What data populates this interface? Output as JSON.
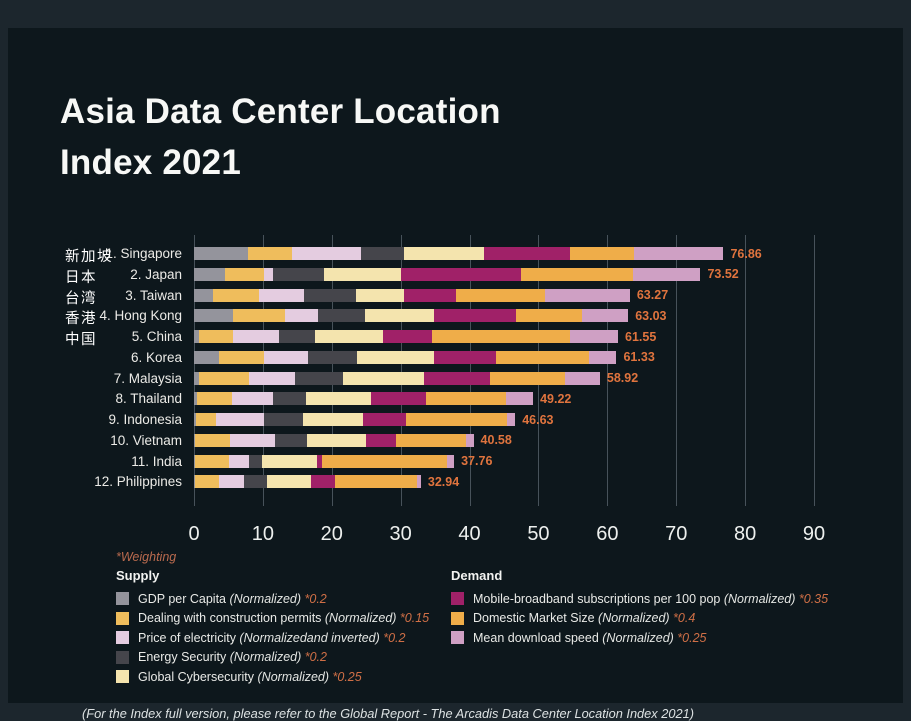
{
  "title": {
    "line1": "Asia Data Center Location",
    "line2": "Index 2021"
  },
  "chart_data": {
    "type": "bar",
    "orientation": "horizontal",
    "title": "Asia Data Center Location Index 2021",
    "xlim": [
      0,
      90
    ],
    "x_ticks": [
      0,
      10,
      20,
      30,
      40,
      50,
      60,
      70,
      80,
      90
    ],
    "grid": true,
    "categories": [
      "1. Singapore",
      "2. Japan",
      "3. Taiwan",
      "4. Hong Kong",
      "5. China",
      "6. Korea",
      "7. Malaysia",
      "8. Thailand",
      "9. Indonesia",
      "10. Vietnam",
      "11. India",
      "12. Philippines"
    ],
    "cjk_labels": [
      "新加坡",
      "日本",
      "台湾",
      "香港",
      "中国"
    ],
    "totals": [
      76.86,
      73.52,
      63.27,
      63.03,
      61.55,
      61.33,
      58.92,
      49.22,
      46.63,
      40.58,
      37.76,
      32.94
    ],
    "series": [
      {
        "name": "GDP per Capita",
        "color": "#94949c",
        "values": [
          7.8,
          4.5,
          2.8,
          5.7,
          0.7,
          3.6,
          0.7,
          0.4,
          0.3,
          0.2,
          0.1,
          0.1
        ]
      },
      {
        "name": "Dealing with construction permits",
        "color": "#efbd5c",
        "values": [
          6.4,
          5.6,
          6.7,
          7.5,
          4.9,
          6.6,
          7.3,
          5.1,
          2.9,
          5.0,
          5.0,
          3.6
        ]
      },
      {
        "name": "Price of electricity",
        "color": "#e4cce0",
        "values": [
          10.0,
          1.3,
          6.5,
          4.8,
          6.7,
          6.3,
          6.6,
          5.9,
          7.0,
          6.6,
          2.9,
          3.5
        ]
      },
      {
        "name": "Energy Security",
        "color": "#45454b",
        "values": [
          6.3,
          7.4,
          7.5,
          6.8,
          5.2,
          7.1,
          7.0,
          4.8,
          5.6,
          4.6,
          1.9,
          3.4
        ]
      },
      {
        "name": "Global Cybersecurity",
        "color": "#f4e4ae",
        "values": [
          11.6,
          11.3,
          7.0,
          10.1,
          9.9,
          11.2,
          11.8,
          9.5,
          8.7,
          8.6,
          8.0,
          6.4
        ]
      },
      {
        "name": "Mobile-broadband subscriptions per 100 pop",
        "color": "#a02168",
        "values": [
          12.5,
          17.4,
          7.6,
          11.8,
          7.2,
          9.1,
          9.5,
          8.0,
          6.3,
          4.3,
          0.7,
          3.5
        ]
      },
      {
        "name": "Domestic Market Size",
        "color": "#efad49",
        "values": [
          9.26,
          16.2,
          12.8,
          9.6,
          20.0,
          13.4,
          10.9,
          11.6,
          14.7,
          10.2,
          18.1,
          11.8
        ]
      },
      {
        "name": "Mean download speed",
        "color": "#cfa0c4",
        "values": [
          13.0,
          9.82,
          12.37,
          6.73,
          6.95,
          4.03,
          5.12,
          3.92,
          1.13,
          1.08,
          1.06,
          0.64
        ]
      }
    ]
  },
  "legend": {
    "weighting_note": "*Weighting",
    "supply": {
      "heading": "Supply",
      "items": [
        {
          "label": "GDP per Capita",
          "qualifier": "(Normalized)",
          "weight": "*0.2",
          "color": "#94949c"
        },
        {
          "label": "Dealing with construction permits",
          "qualifier": "(Normalized)",
          "weight": "*0.15",
          "color": "#efbd5c"
        },
        {
          "label": "Price of electricity",
          "qualifier": "(Normalizedand inverted)",
          "weight": "*0.2",
          "color": "#e4cce0"
        },
        {
          "label": "Energy Security",
          "qualifier": "(Normalized)",
          "weight": "*0.2",
          "color": "#45454b"
        },
        {
          "label": "Global Cybersecurity",
          "qualifier": "(Normalized)",
          "weight": "*0.25",
          "color": "#f4e4ae"
        }
      ]
    },
    "demand": {
      "heading": "Demand",
      "items": [
        {
          "label": "Mobile-broadband subscriptions per 100 pop",
          "qualifier": "(Normalized)",
          "weight": "*0.35",
          "color": "#a02168"
        },
        {
          "label": "Domestic Market Size",
          "qualifier": "(Normalized)",
          "weight": "*0.4",
          "color": "#efad49"
        },
        {
          "label": "Mean download speed",
          "qualifier": "(Normalized)",
          "weight": "*0.25",
          "color": "#cfa0c4"
        }
      ]
    }
  },
  "footer": {
    "note": "(For the Index full version, please refer to the Global Report - The Arcadis Data Center Location Index 2021)"
  },
  "colors": {
    "background_panel": "#0d171c",
    "background_frame": "#1c262d",
    "gridline": "#47525a",
    "value_label": "#e0743e",
    "weighting_note": "#b96a4e",
    "text_primary": "#f7f8f6"
  }
}
